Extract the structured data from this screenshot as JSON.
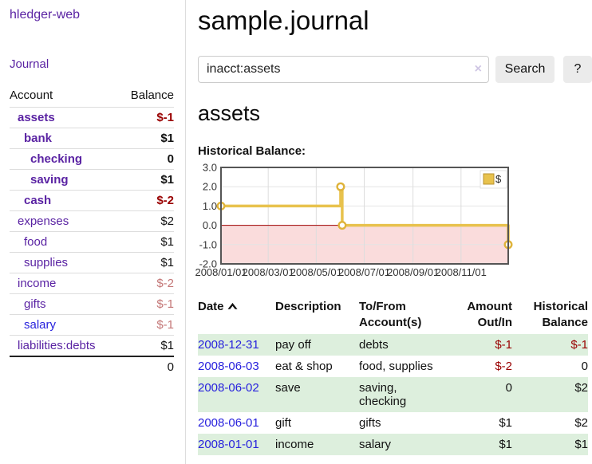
{
  "colors": {
    "accent_purple": "#5a23a3",
    "link_blue": "#2822dd",
    "negative_red": "#990000",
    "negative_soft": "#c47777",
    "row_green": "#ddefdd",
    "chart_line_gold": "#e8c24d",
    "chart_marker_stroke": "#dfb33a",
    "chart_negative_fill": "#fadcdc",
    "chart_zero_line": "#a00000",
    "chart_border": "#555555",
    "grid_vertical": "#dddddd",
    "grid_horizontal": "#e4e4e4"
  },
  "sidebar": {
    "app_title": "hledger-web",
    "nav": {
      "journal": "Journal"
    },
    "accounts_table": {
      "account_header": "Account",
      "balance_header": "Balance"
    },
    "accounts": [
      {
        "name": "assets",
        "balance": "$-1"
      },
      {
        "name": "bank",
        "balance": "$1"
      },
      {
        "name": "checking",
        "balance": "0"
      },
      {
        "name": "saving",
        "balance": "$1"
      },
      {
        "name": "cash",
        "balance": "$-2"
      },
      {
        "name": "expenses",
        "balance": "$2"
      },
      {
        "name": "food",
        "balance": "$1"
      },
      {
        "name": "supplies",
        "balance": "$1"
      },
      {
        "name": "income",
        "balance": "$-2"
      },
      {
        "name": "gifts",
        "balance": "$-1"
      },
      {
        "name": "salary",
        "balance": "$-1"
      },
      {
        "name": "liabilities:debts",
        "balance": "$1"
      }
    ],
    "total": "0"
  },
  "main": {
    "title": "sample.journal",
    "search": {
      "value": "inacct:assets",
      "clear": "×",
      "search_button": "Search",
      "help_button": "?"
    },
    "account_title": "assets",
    "chart_heading": "Historical Balance:"
  },
  "chart_data": {
    "type": "line",
    "style": "step-after",
    "title": "Historical Balance of assets",
    "series_label": "$",
    "x_range": [
      "2008/01/01",
      "2008/12/31"
    ],
    "ylim": [
      -2,
      3
    ],
    "y_ticks": [
      3,
      2,
      1,
      0,
      -1,
      -2
    ],
    "x_ticks": [
      "2008/01/01",
      "2008/03/01",
      "2008/05/01",
      "2008/07/01",
      "2008/09/01",
      "2008/11/01"
    ],
    "points": [
      [
        "2008/01/01",
        1
      ],
      [
        "2008/06/01",
        2
      ],
      [
        "2008/06/03",
        0
      ],
      [
        "2008/12/31",
        -1
      ]
    ],
    "negative_region_shaded": true,
    "legend_position": "top-right",
    "grid": true
  },
  "table": {
    "headers": {
      "date": "Date",
      "description": "Description",
      "tofrom": "To/From Account(s)",
      "amount": "Amount Out/In",
      "historical": "Historical Balance"
    },
    "rows": [
      {
        "date": "2008-12-31",
        "description": "pay off",
        "tofrom": "debts",
        "amount": "$-1",
        "historical": "$-1"
      },
      {
        "date": "2008-06-03",
        "description": "eat & shop",
        "tofrom": "food, supplies",
        "amount": "$-2",
        "historical": "0"
      },
      {
        "date": "2008-06-02",
        "description": "save",
        "tofrom": "saving, checking",
        "amount": "0",
        "historical": "$2"
      },
      {
        "date": "2008-06-01",
        "description": "gift",
        "tofrom": "gifts",
        "amount": "$1",
        "historical": "$2"
      },
      {
        "date": "2008-01-01",
        "description": "income",
        "tofrom": "salary",
        "amount": "$1",
        "historical": "$1"
      }
    ]
  }
}
